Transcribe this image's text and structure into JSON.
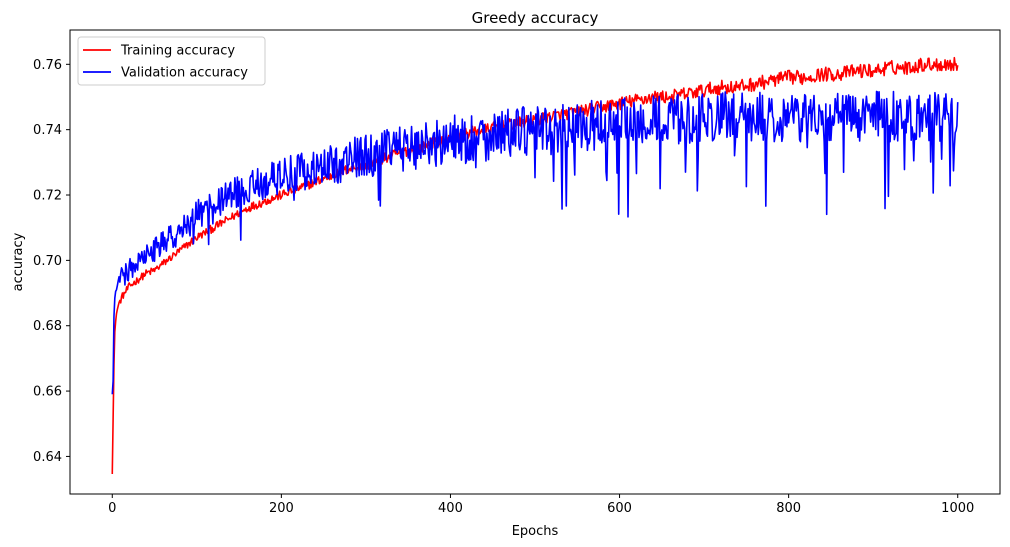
{
  "chart_data": {
    "type": "line",
    "title": "Greedy accuracy",
    "xlabel": "Epochs",
    "ylabel": "accuracy",
    "xlim": [
      -50,
      1050
    ],
    "ylim": [
      0.6285,
      0.7705
    ],
    "xticks": [
      0,
      200,
      400,
      600,
      800,
      1000
    ],
    "xtick_labels": [
      "0",
      "200",
      "400",
      "600",
      "800",
      "1000"
    ],
    "yticks": [
      0.64,
      0.66,
      0.68,
      0.7,
      0.72,
      0.74,
      0.76
    ],
    "ytick_labels": [
      "0.64",
      "0.66",
      "0.68",
      "0.70",
      "0.72",
      "0.74",
      "0.76"
    ],
    "legend_position": "top-left",
    "grid": false,
    "series": [
      {
        "name": "Training accuracy",
        "color": "#ff0000",
        "x": [
          0,
          1,
          2,
          3,
          5,
          8,
          12,
          20,
          30,
          40,
          50,
          60,
          70,
          80,
          90,
          100,
          120,
          140,
          160,
          180,
          200,
          220,
          240,
          260,
          280,
          300,
          320,
          340,
          360,
          380,
          400,
          420,
          440,
          460,
          480,
          500,
          520,
          540,
          560,
          580,
          600,
          620,
          640,
          660,
          680,
          700,
          720,
          740,
          760,
          780,
          800,
          820,
          840,
          860,
          880,
          900,
          920,
          940,
          960,
          980,
          1000
        ],
        "y": [
          0.635,
          0.652,
          0.668,
          0.678,
          0.684,
          0.687,
          0.689,
          0.692,
          0.694,
          0.696,
          0.697,
          0.699,
          0.701,
          0.703,
          0.705,
          0.707,
          0.71,
          0.713,
          0.716,
          0.718,
          0.72,
          0.722,
          0.724,
          0.726,
          0.728,
          0.729,
          0.731,
          0.733,
          0.734,
          0.736,
          0.737,
          0.739,
          0.74,
          0.741,
          0.742,
          0.743,
          0.744,
          0.745,
          0.746,
          0.747,
          0.748,
          0.749,
          0.75,
          0.75,
          0.751,
          0.752,
          0.753,
          0.753,
          0.754,
          0.755,
          0.756,
          0.756,
          0.757,
          0.757,
          0.758,
          0.758,
          0.759,
          0.759,
          0.76,
          0.76,
          0.76
        ],
        "noise": 0.0018
      },
      {
        "name": "Validation accuracy",
        "color": "#0000ff",
        "x": [
          0,
          1,
          2,
          3,
          5,
          8,
          12,
          20,
          30,
          40,
          50,
          60,
          70,
          80,
          90,
          100,
          120,
          140,
          160,
          180,
          200,
          220,
          240,
          260,
          280,
          300,
          320,
          340,
          360,
          380,
          400,
          420,
          440,
          460,
          480,
          500,
          520,
          540,
          560,
          580,
          600,
          620,
          640,
          660,
          680,
          700,
          720,
          740,
          760,
          780,
          800,
          820,
          840,
          860,
          880,
          900,
          920,
          940,
          960,
          980,
          1000
        ],
        "y": [
          0.659,
          0.664,
          0.682,
          0.688,
          0.692,
          0.694,
          0.695,
          0.697,
          0.699,
          0.701,
          0.703,
          0.705,
          0.707,
          0.709,
          0.711,
          0.714,
          0.717,
          0.72,
          0.722,
          0.724,
          0.726,
          0.727,
          0.728,
          0.729,
          0.731,
          0.732,
          0.733,
          0.734,
          0.735,
          0.736,
          0.737,
          0.737,
          0.738,
          0.739,
          0.739,
          0.74,
          0.74,
          0.741,
          0.741,
          0.742,
          0.742,
          0.742,
          0.743,
          0.743,
          0.743,
          0.744,
          0.744,
          0.744,
          0.744,
          0.744,
          0.744,
          0.744,
          0.744,
          0.744,
          0.744,
          0.744,
          0.744,
          0.744,
          0.744,
          0.744,
          0.745
        ],
        "noise": 0.0055
      }
    ]
  }
}
